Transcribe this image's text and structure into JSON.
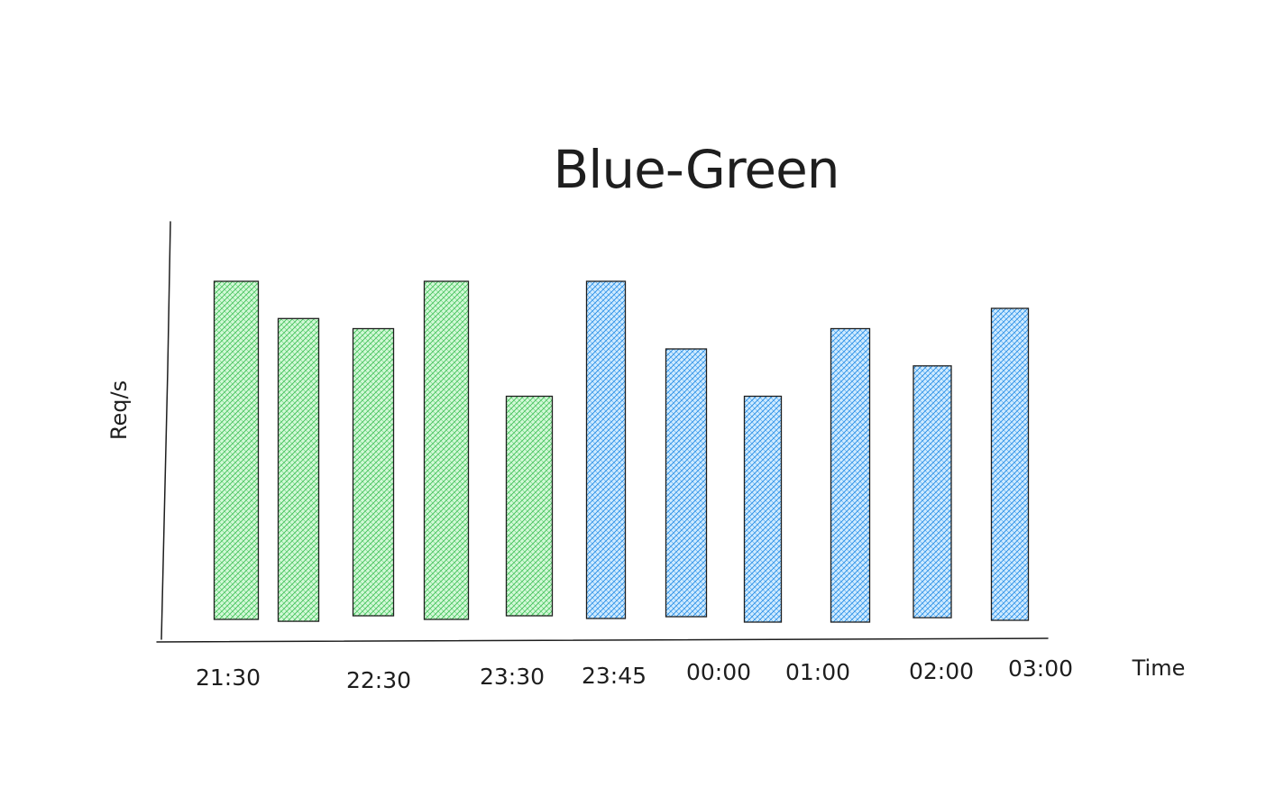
{
  "chart_data": {
    "type": "bar",
    "title": "Blue-Green",
    "xlabel": "Time",
    "ylabel": "Req/s",
    "categories": [
      "21:30",
      "",
      "22:30",
      "",
      "23:30",
      "23:45",
      "",
      "00:00",
      "01:00",
      "02:00",
      "03:00"
    ],
    "tick_labels": [
      "21:30",
      "22:30",
      "23:30",
      "23:45",
      "00:00",
      "01:00",
      "02:00",
      "03:00"
    ],
    "values": [
      100,
      89,
      86,
      100,
      66,
      100,
      80,
      66,
      86,
      75,
      92
    ],
    "bar_colors": [
      "green",
      "green",
      "green",
      "green",
      "green",
      "blue",
      "blue",
      "blue",
      "blue",
      "blue",
      "blue"
    ],
    "ylim": [
      0,
      110
    ],
    "grid": false,
    "legend": "none"
  },
  "colors": {
    "green_fill": "#b2f2bb",
    "green_hatch": "#40c057",
    "blue_fill": "#a5d8ff",
    "blue_hatch": "#228be6",
    "stroke": "#1e1e1e"
  }
}
